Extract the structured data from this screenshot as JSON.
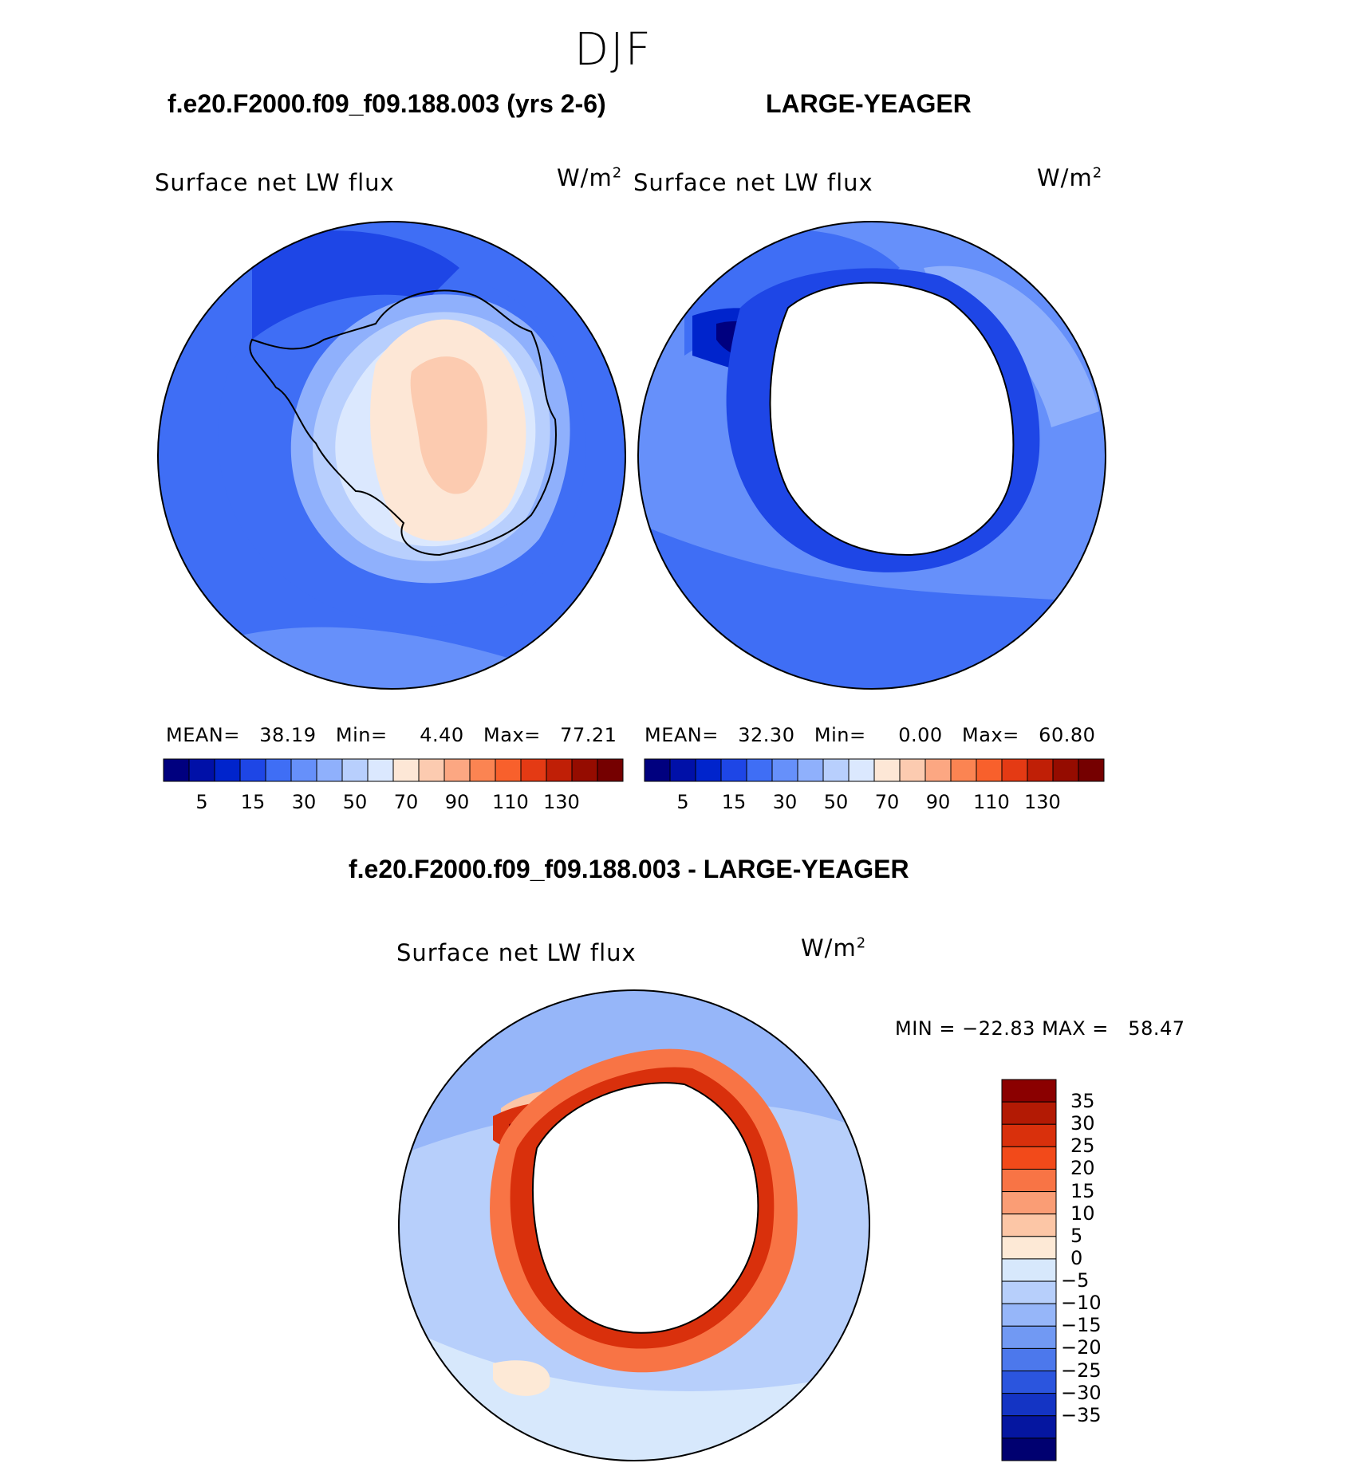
{
  "season": "DJF",
  "panels": [
    {
      "case": "f.e20.F2000.f09_f09.188.003 (yrs 2-6)",
      "variable": "Surface net LW flux",
      "units": "W/m",
      "units_sup": "2",
      "stats": {
        "mean_label": "MEAN=",
        "mean": "38.19",
        "min_label": "Min=",
        "min": "4.40",
        "max_label": "Max=",
        "max": "77.21"
      }
    },
    {
      "case": "LARGE-YEAGER",
      "variable": "Surface net LW flux",
      "units": "W/m",
      "units_sup": "2",
      "stats": {
        "mean_label": "MEAN=",
        "mean": "32.30",
        "min_label": "Min=",
        "min": "0.00",
        "max_label": "Max=",
        "max": "60.80"
      }
    }
  ],
  "abs_colorbar": {
    "colors": [
      "#00007f",
      "#0010a8",
      "#0024cc",
      "#1e46e6",
      "#3f6ef5",
      "#6690fa",
      "#8fb0fc",
      "#b8cffd",
      "#dbe8fe",
      "#fde7d6",
      "#fccbb0",
      "#fca782",
      "#fb8452",
      "#f8602c",
      "#e43a14",
      "#c01f06",
      "#950c00",
      "#750000"
    ],
    "tick_labels": [
      "5",
      "15",
      "30",
      "50",
      "70",
      "90",
      "110",
      "130"
    ]
  },
  "diff": {
    "title": "f.e20.F2000.f09_f09.188.003 - LARGE-YEAGER",
    "variable": "Surface net LW flux",
    "units": "W/m",
    "units_sup": "2",
    "stats": {
      "min_label": "MIN =",
      "min": "−22.83",
      "max_label": "MAX =",
      "max": "58.47"
    }
  },
  "diff_colorbar": {
    "colors": [
      "#8b0000",
      "#b31a04",
      "#d9300c",
      "#f24a1a",
      "#f87445",
      "#fa9d75",
      "#fcc6a6",
      "#fde9d6",
      "#d7e8fc",
      "#b7cffb",
      "#96b6f9",
      "#7199f3",
      "#4c78ec",
      "#2b55de",
      "#1434c4",
      "#0516a0",
      "#000070"
    ],
    "labels": [
      "35",
      "30",
      "25",
      "20",
      "15",
      "10",
      "5",
      "0",
      "−5",
      "−10",
      "−15",
      "−20",
      "−25",
      "−30",
      "−35"
    ]
  }
}
